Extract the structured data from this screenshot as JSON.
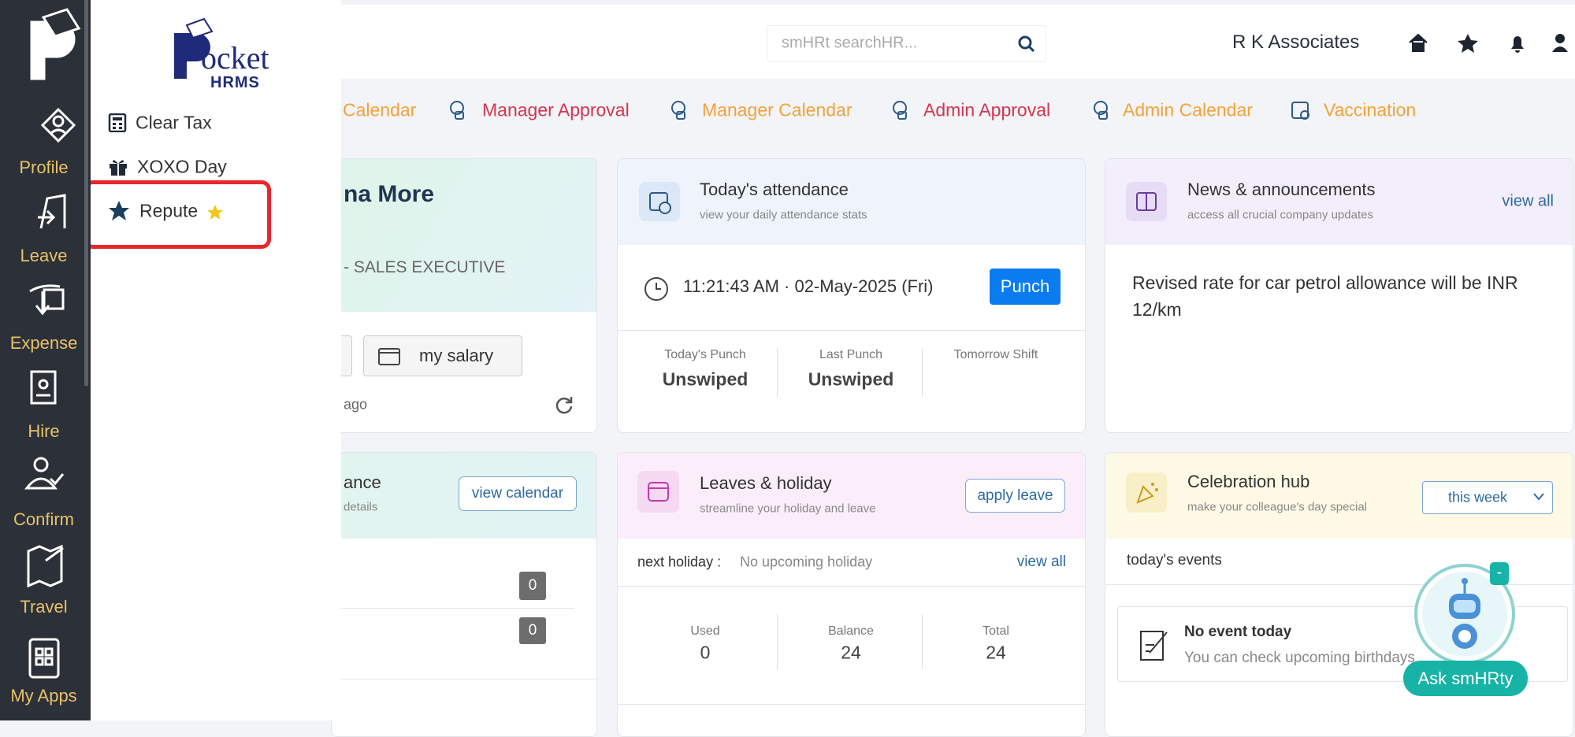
{
  "sidebar": {
    "items": [
      "Profile",
      "Leave",
      "Expense",
      "Hire",
      "Confirm",
      "Travel",
      "My Apps"
    ]
  },
  "flyout": {
    "logo": "ocket",
    "logo_sub": "HRMS",
    "menu": [
      "Clear Tax",
      "XOXO Day",
      "Repute"
    ]
  },
  "header": {
    "search_placeholder": "smHRt searchHR...",
    "company": "R K Associates"
  },
  "tabs": [
    "Calendar",
    "Manager Approval",
    "Manager Calendar",
    "Admin Approval",
    "Admin Calendar",
    "Vaccination"
  ],
  "profile_card": {
    "name": "na More",
    "designation": "- SALES EXECUTIVE",
    "button": "my salary",
    "updated": "ago"
  },
  "attendance_card": {
    "title": "Today's attendance",
    "subtitle": "view your daily attendance stats",
    "datetime": "11:21:43 AM · 02-May-2025 (Fri)",
    "button": "Punch",
    "stats": [
      {
        "label": "Today's Punch",
        "value": "Unswiped"
      },
      {
        "label": "Last Punch",
        "value": "Unswiped"
      },
      {
        "label": "Tomorrow Shift"
      }
    ]
  },
  "news_card": {
    "title": "News & announcements",
    "subtitle": "access all crucial company updates",
    "link": "view all",
    "text": "Revised rate for car petrol allowance will be INR 12/km"
  },
  "calendar_card": {
    "title": "ance",
    "subtitle": "details",
    "button": "view calendar",
    "counts": [
      0,
      0
    ]
  },
  "leaves_card": {
    "title": "Leaves & holiday",
    "subtitle": "streamline your holiday and leave",
    "button": "apply leave",
    "holiday_label": "next holiday :",
    "holiday_value": "No upcoming holiday",
    "link": "view all",
    "stats": [
      {
        "label": "Used",
        "value": 0
      },
      {
        "label": "Balance",
        "value": 24
      },
      {
        "label": "Total",
        "value": 24
      }
    ]
  },
  "celebration_card": {
    "title": "Celebration hub",
    "subtitle": "make your colleague's day special",
    "select": "this week",
    "events_label": "today's events",
    "empty_title": "No event today",
    "empty_text": "You can check upcoming birthdays"
  },
  "assistant": {
    "badge": "-",
    "button": "Ask smHRty"
  }
}
